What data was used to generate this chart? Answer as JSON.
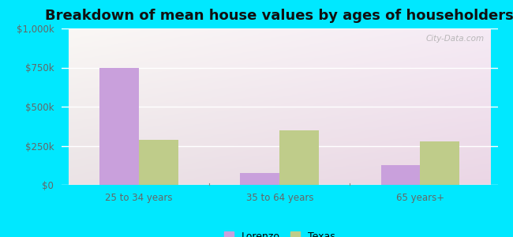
{
  "title": "Breakdown of mean house values by ages of householders",
  "categories": [
    "25 to 34 years",
    "35 to 64 years",
    "65 years+"
  ],
  "lorenzo_values": [
    750000,
    75000,
    125000
  ],
  "texas_values": [
    290000,
    350000,
    280000
  ],
  "ylim": [
    0,
    1000000
  ],
  "yticks": [
    0,
    250000,
    500000,
    750000,
    1000000
  ],
  "ytick_labels": [
    "$0",
    "$250k",
    "$500k",
    "$750k",
    "$1,000k"
  ],
  "lorenzo_color": "#c9a0dc",
  "texas_color": "#bfcc8a",
  "bar_width": 0.28,
  "background_outer": "#00e8ff",
  "title_fontsize": 13,
  "legend_labels": [
    "Lorenzo",
    "Texas"
  ],
  "watermark": "City-Data.com"
}
